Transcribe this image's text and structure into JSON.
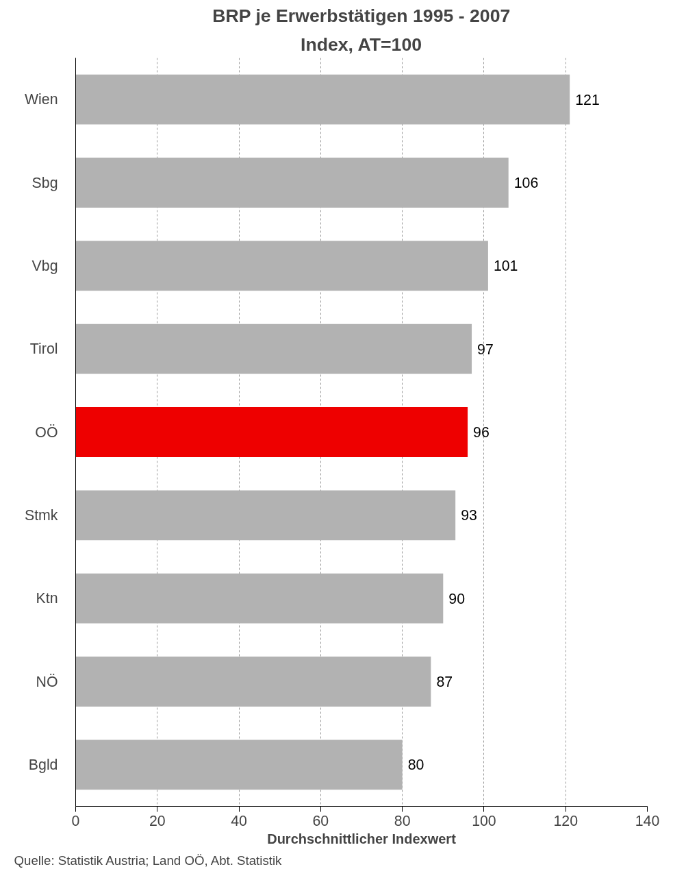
{
  "chart_data": {
    "type": "bar",
    "orientation": "horizontal",
    "title": "BRP je Erwerbstätigen 1995 - 2007",
    "subtitle": "Index, AT=100",
    "xlabel": "Durchschnittlicher Indexwert",
    "categories": [
      "Wien",
      "Sbg",
      "Vbg",
      "Tirol",
      "OÖ",
      "Stmk",
      "Ktn",
      "NÖ",
      "Bgld"
    ],
    "values": [
      121,
      106,
      101,
      97,
      96,
      93,
      90,
      87,
      80
    ],
    "colors": [
      "#b2b2b2",
      "#b2b2b2",
      "#b2b2b2",
      "#b2b2b2",
      "#ee0000",
      "#b2b2b2",
      "#b2b2b2",
      "#b2b2b2",
      "#b2b2b2"
    ],
    "xlim": [
      0,
      140
    ],
    "xticks": [
      0,
      20,
      40,
      60,
      80,
      100,
      120,
      140
    ],
    "grid": "x",
    "data_labels": true,
    "annotations": [
      "Quelle: Statistik Austria;  Land OÖ, Abt. Statistik"
    ]
  }
}
